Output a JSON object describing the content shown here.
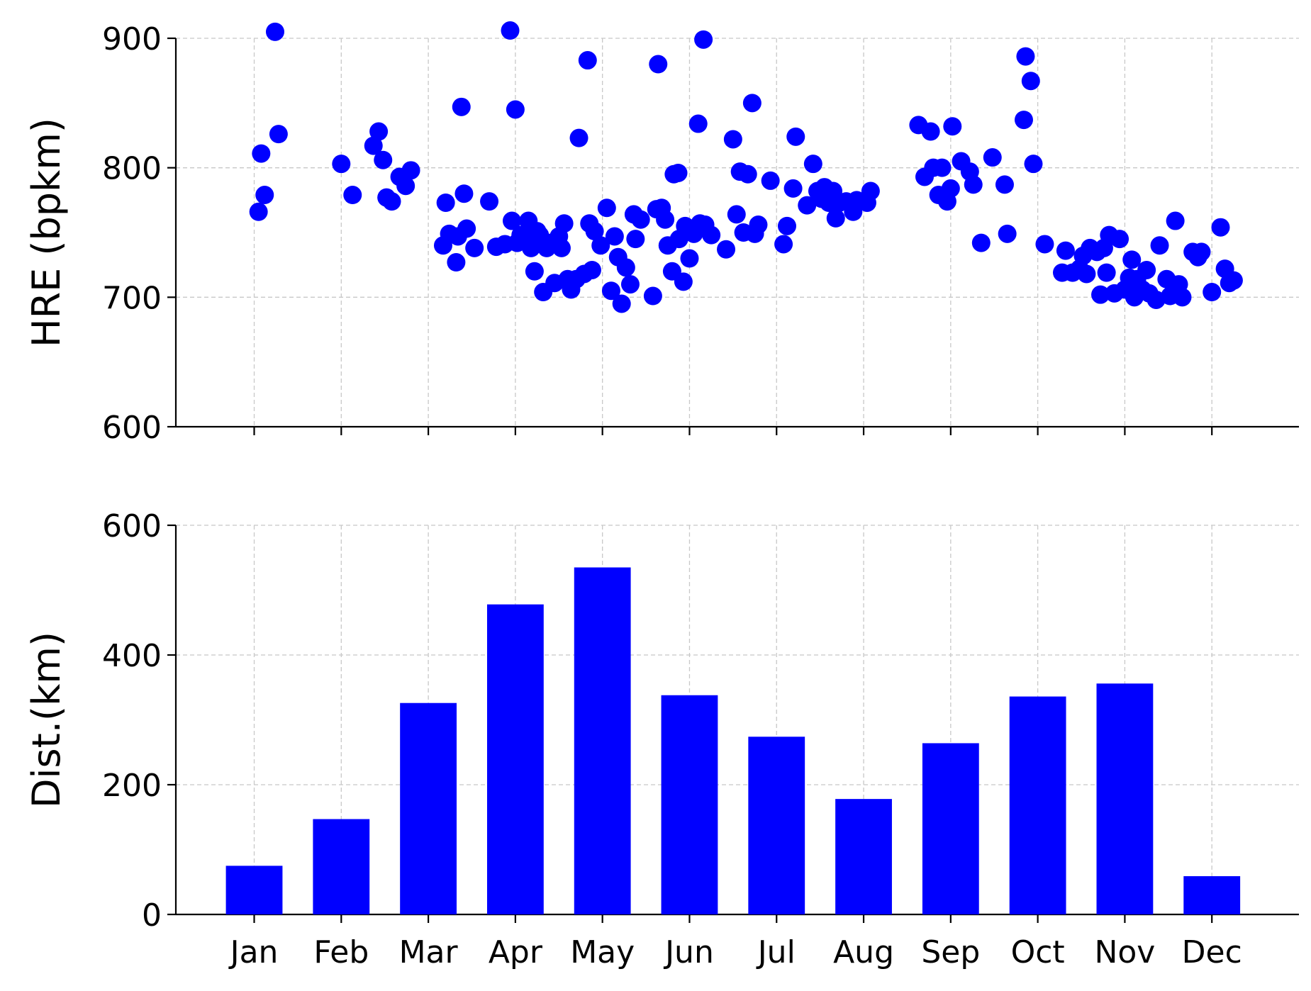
{
  "chart_data": [
    {
      "type": "scatter",
      "title": "",
      "xlabel": "",
      "ylabel": "HRE (bpkm)",
      "ylim": [
        600,
        900
      ],
      "yticks": [
        600,
        700,
        800,
        900
      ],
      "xlim": [
        0.1,
        13.0
      ],
      "xticks": [
        1,
        2,
        3,
        4,
        5,
        6,
        7,
        8,
        9,
        10,
        11,
        12
      ],
      "grid": true,
      "color": "#0000ff",
      "points": [
        [
          1.05,
          766
        ],
        [
          1.08,
          811
        ],
        [
          1.12,
          779
        ],
        [
          1.24,
          905
        ],
        [
          1.28,
          826
        ],
        [
          2.0,
          803
        ],
        [
          2.13,
          779
        ],
        [
          2.37,
          817
        ],
        [
          2.43,
          828
        ],
        [
          2.48,
          806
        ],
        [
          2.52,
          777
        ],
        [
          2.58,
          774
        ],
        [
          2.67,
          793
        ],
        [
          2.74,
          786
        ],
        [
          2.8,
          798
        ],
        [
          3.17,
          740
        ],
        [
          3.2,
          773
        ],
        [
          3.24,
          749
        ],
        [
          3.32,
          727
        ],
        [
          3.34,
          747
        ],
        [
          3.38,
          847
        ],
        [
          3.41,
          780
        ],
        [
          3.44,
          753
        ],
        [
          3.53,
          738
        ],
        [
          3.7,
          774
        ],
        [
          3.78,
          739
        ],
        [
          3.88,
          741
        ],
        [
          3.94,
          906
        ],
        [
          3.96,
          759
        ],
        [
          4.0,
          845
        ],
        [
          4.02,
          742
        ],
        [
          4.06,
          748
        ],
        [
          4.12,
          745
        ],
        [
          4.15,
          759
        ],
        [
          4.18,
          738
        ],
        [
          4.22,
          720
        ],
        [
          4.25,
          751
        ],
        [
          4.28,
          748
        ],
        [
          4.32,
          704
        ],
        [
          4.36,
          738
        ],
        [
          4.4,
          742
        ],
        [
          4.45,
          711
        ],
        [
          4.5,
          747
        ],
        [
          4.53,
          738
        ],
        [
          4.56,
          757
        ],
        [
          4.6,
          714
        ],
        [
          4.64,
          706
        ],
        [
          4.7,
          714
        ],
        [
          4.73,
          823
        ],
        [
          4.79,
          718
        ],
        [
          4.83,
          883
        ],
        [
          4.85,
          757
        ],
        [
          4.88,
          721
        ],
        [
          4.91,
          751
        ],
        [
          4.98,
          740
        ],
        [
          5.05,
          769
        ],
        [
          5.1,
          705
        ],
        [
          5.14,
          747
        ],
        [
          5.18,
          731
        ],
        [
          5.22,
          695
        ],
        [
          5.27,
          723
        ],
        [
          5.32,
          710
        ],
        [
          5.36,
          764
        ],
        [
          5.38,
          745
        ],
        [
          5.44,
          760
        ],
        [
          5.58,
          701
        ],
        [
          5.62,
          768
        ],
        [
          5.64,
          880
        ],
        [
          5.68,
          769
        ],
        [
          5.72,
          760
        ],
        [
          5.75,
          740
        ],
        [
          5.8,
          720
        ],
        [
          5.82,
          795
        ],
        [
          5.87,
          796
        ],
        [
          5.88,
          745
        ],
        [
          5.93,
          712
        ],
        [
          5.95,
          755
        ],
        [
          6.0,
          730
        ],
        [
          6.05,
          749
        ],
        [
          6.1,
          834
        ],
        [
          6.12,
          757
        ],
        [
          6.16,
          899
        ],
        [
          6.18,
          756
        ],
        [
          6.25,
          748
        ],
        [
          6.42,
          737
        ],
        [
          6.5,
          822
        ],
        [
          6.54,
          764
        ],
        [
          6.58,
          797
        ],
        [
          6.62,
          750
        ],
        [
          6.67,
          795
        ],
        [
          6.72,
          850
        ],
        [
          6.75,
          749
        ],
        [
          6.79,
          756
        ],
        [
          6.93,
          790
        ],
        [
          7.08,
          741
        ],
        [
          7.12,
          755
        ],
        [
          7.19,
          784
        ],
        [
          7.22,
          824
        ],
        [
          7.35,
          771
        ],
        [
          7.42,
          803
        ],
        [
          7.47,
          782
        ],
        [
          7.52,
          776
        ],
        [
          7.55,
          785
        ],
        [
          7.6,
          773
        ],
        [
          7.65,
          782
        ],
        [
          7.68,
          761
        ],
        [
          7.72,
          773
        ],
        [
          7.8,
          774
        ],
        [
          7.88,
          766
        ],
        [
          7.92,
          775
        ],
        [
          8.04,
          773
        ],
        [
          8.08,
          782
        ],
        [
          8.63,
          833
        ],
        [
          8.7,
          793
        ],
        [
          8.77,
          828
        ],
        [
          8.8,
          800
        ],
        [
          8.86,
          779
        ],
        [
          8.9,
          800
        ],
        [
          8.96,
          774
        ],
        [
          9.0,
          784
        ],
        [
          9.02,
          832
        ],
        [
          9.12,
          805
        ],
        [
          9.22,
          797
        ],
        [
          9.26,
          787
        ],
        [
          9.35,
          742
        ],
        [
          9.48,
          808
        ],
        [
          9.62,
          787
        ],
        [
          9.65,
          749
        ],
        [
          9.84,
          837
        ],
        [
          9.86,
          886
        ],
        [
          9.92,
          867
        ],
        [
          9.95,
          803
        ],
        [
          10.08,
          741
        ],
        [
          10.28,
          719
        ],
        [
          10.32,
          736
        ],
        [
          10.4,
          719
        ],
        [
          10.48,
          722
        ],
        [
          10.52,
          732
        ],
        [
          10.56,
          718
        ],
        [
          10.6,
          738
        ],
        [
          10.68,
          735
        ],
        [
          10.72,
          702
        ],
        [
          10.76,
          738
        ],
        [
          10.79,
          719
        ],
        [
          10.82,
          748
        ],
        [
          10.88,
          703
        ],
        [
          10.94,
          745
        ],
        [
          11.0,
          706
        ],
        [
          11.05,
          715
        ],
        [
          11.08,
          729
        ],
        [
          11.11,
          700
        ],
        [
          11.14,
          714
        ],
        [
          11.2,
          706
        ],
        [
          11.25,
          721
        ],
        [
          11.28,
          703
        ],
        [
          11.36,
          698
        ],
        [
          11.4,
          740
        ],
        [
          11.48,
          714
        ],
        [
          11.52,
          701
        ],
        [
          11.58,
          759
        ],
        [
          11.62,
          710
        ],
        [
          11.66,
          700
        ],
        [
          11.78,
          735
        ],
        [
          11.84,
          731
        ],
        [
          11.88,
          735
        ],
        [
          12.0,
          704
        ],
        [
          12.1,
          754
        ],
        [
          12.15,
          722
        ],
        [
          12.2,
          711
        ],
        [
          12.25,
          713
        ]
      ]
    },
    {
      "type": "bar",
      "title": "",
      "xlabel": "",
      "ylabel": "Dist.(km)",
      "ylim": [
        0,
        600
      ],
      "yticks": [
        0,
        200,
        400,
        600
      ],
      "grid": true,
      "color": "#0000ff",
      "categories": [
        "Jan",
        "Feb",
        "Mar",
        "Apr",
        "May",
        "Jun",
        "Jul",
        "Aug",
        "Sep",
        "Oct",
        "Nov",
        "Dec"
      ],
      "values": [
        75,
        147,
        326,
        478,
        535,
        338,
        274,
        178,
        264,
        336,
        356,
        59
      ]
    }
  ]
}
